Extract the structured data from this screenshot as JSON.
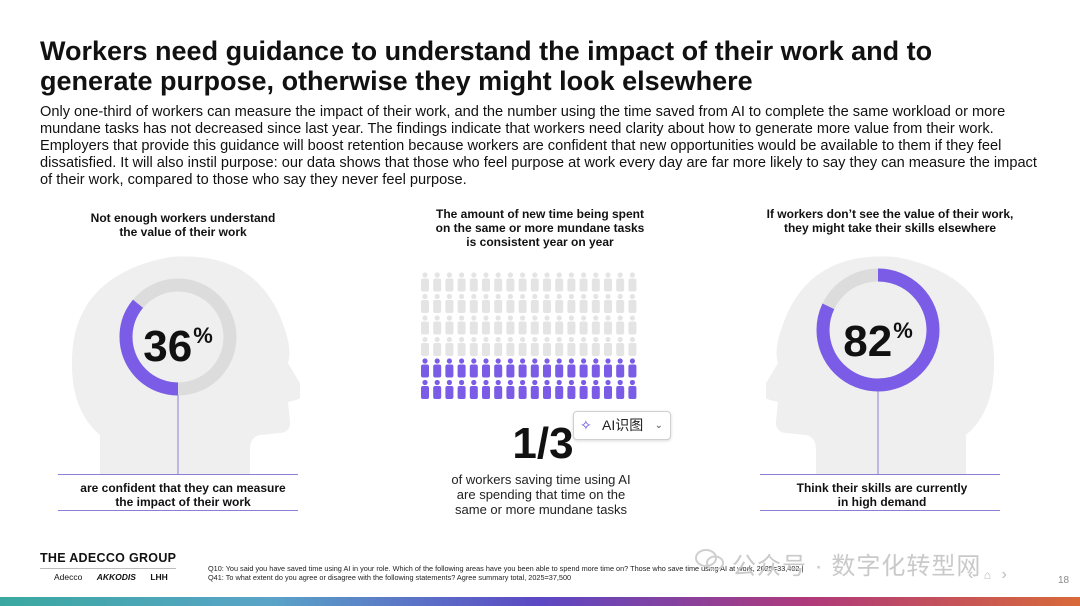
{
  "title": "Workers need guidance to understand the impact of their work and to generate purpose, otherwise they might look elsewhere",
  "intro": "Only one-third of workers can measure the impact of their work, and the number using the time saved from AI to complete the same workload or more mundane tasks has not decreased since last year. The findings indicate that workers need clarity about how to generate more value from their work. Employers that provide this guidance will boost retention because workers are confident that new opportunities would be available to them if they feel dissatisfied. It will also instil purpose: our data shows that those who feel purpose at work every day are far more likely to say they can measure the impact of their work, compared to those who say they never feel purpose.",
  "colors": {
    "accent": "#7b5ce6",
    "ring_bg": "#dcdcdc",
    "head": "#efefef",
    "person_grey": "#e4e4e4",
    "rule": "#8b7fd4"
  },
  "chart_data": [
    {
      "type": "pie",
      "title": "Not enough workers understand the value of their work",
      "value": 36,
      "value_label": "36",
      "unit": "%",
      "caption": "are confident that they can measure the impact of their work"
    },
    {
      "type": "table",
      "title": "The amount of new time being spent on the same or more mundane tasks is consistent year on year",
      "highlighted_fraction": 0.3333,
      "value_label": "1/3",
      "caption": "of workers saving time using AI are spending that time on the same or more mundane tasks"
    },
    {
      "type": "pie",
      "title": "If workers don’t see the value of their work, they might take their skills elsewhere",
      "value": 82,
      "value_label": "82",
      "unit": "%",
      "caption": "Think their skills are currently in high demand"
    }
  ],
  "headers": {
    "left_line1": "Not enough workers understand",
    "left_line2": "the value of their work",
    "mid_line1": "The amount of new time being spent",
    "mid_line2": "on the same or more mundane tasks",
    "mid_line3": "is consistent year on year",
    "right_line1": "If workers don’t see the value of their work,",
    "right_line2": "they might take their skills elsewhere"
  },
  "captions": {
    "left_line1": "are confident that they can measure",
    "left_line2": "the impact of their work",
    "mid_line1": "of workers saving time using AI",
    "mid_line2": "are spending that time on the",
    "mid_line3": "same or more mundane tasks",
    "right_line1": "Think their skills are currently",
    "right_line2": "in high demand"
  },
  "ai_badge": {
    "label": "AI识图"
  },
  "brand": {
    "logo": "THE ADECCO GROUP",
    "sub1": "Adecco",
    "sub2": "AKKODIS",
    "sub3": "LHH"
  },
  "footnote": "Q10: You said you have saved time using AI in your role. Which of the following areas have you been able to spend more time on? Those who save time using AI at work, 2025=33,402 | Q41: To what extent do you agree or disagree with the following statements? Agree summary total, 2025=37,500",
  "watermark": "公众号 · 数字化转型网",
  "page_number": "18"
}
